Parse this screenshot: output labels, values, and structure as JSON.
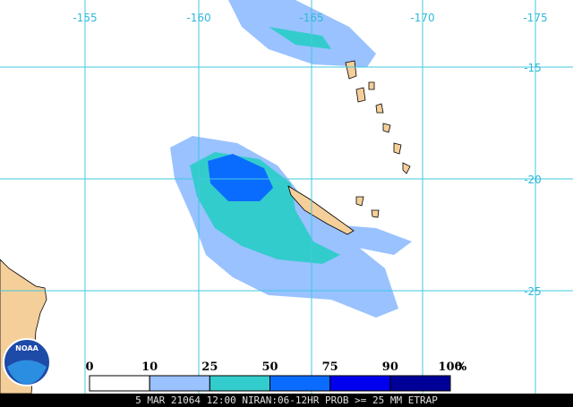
{
  "map": {
    "lon_labels": [
      "-155",
      "-160",
      "-165",
      "-170",
      "-175"
    ],
    "lat_labels": [
      "-15",
      "-20",
      "-25"
    ],
    "logo": "NOAA",
    "legend": {
      "labels": [
        "0",
        "10",
        "25",
        "50",
        "75",
        "90",
        "100"
      ],
      "unit": "%",
      "colors": [
        "#ffffff",
        "#99c2ff",
        "#33cccc",
        "#0a6cff",
        "#0000ee",
        "#000099"
      ]
    },
    "footer": "5 MAR 21064 12:00 NIRAN:06-12HR PROB >= 25 MM ETRAP"
  }
}
